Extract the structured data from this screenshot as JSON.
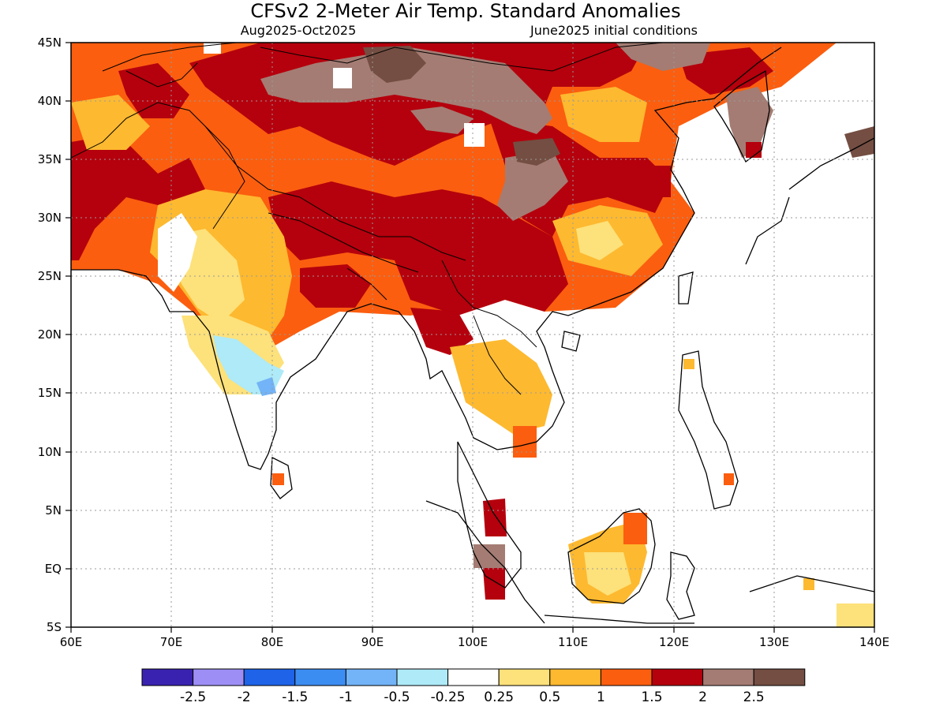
{
  "title": "CFSv2 2-Meter Air Temp. Standard Anomalies",
  "subtitle_left": "Aug2025-Oct2025",
  "subtitle_right": "June2025 initial conditions",
  "map": {
    "lon_range": [
      60,
      140
    ],
    "lat_range": [
      -5,
      45
    ],
    "lon_ticks": [
      "60E",
      "70E",
      "80E",
      "90E",
      "100E",
      "110E",
      "120E",
      "130E",
      "140E"
    ],
    "lat_ticks": [
      "45N",
      "40N",
      "35N",
      "30N",
      "25N",
      "20N",
      "15N",
      "10N",
      "5N",
      "EQ",
      "5S"
    ],
    "grid": "dotted"
  },
  "colorbar": {
    "colors": [
      "#3a22b0",
      "#9d8ef5",
      "#1e63e8",
      "#3c8df2",
      "#73b3f7",
      "#aeeaf7",
      "#ffffff",
      "#fde17a",
      "#fdb930",
      "#fb5e0f",
      "#b5000d",
      "#a47c73",
      "#744e42"
    ],
    "labels": [
      "-2.5",
      "-2",
      "-1.5",
      "-1",
      "-0.5",
      "-0.25",
      "0.25",
      "0.5",
      "1",
      "1.5",
      "2",
      "2.5"
    ]
  }
}
